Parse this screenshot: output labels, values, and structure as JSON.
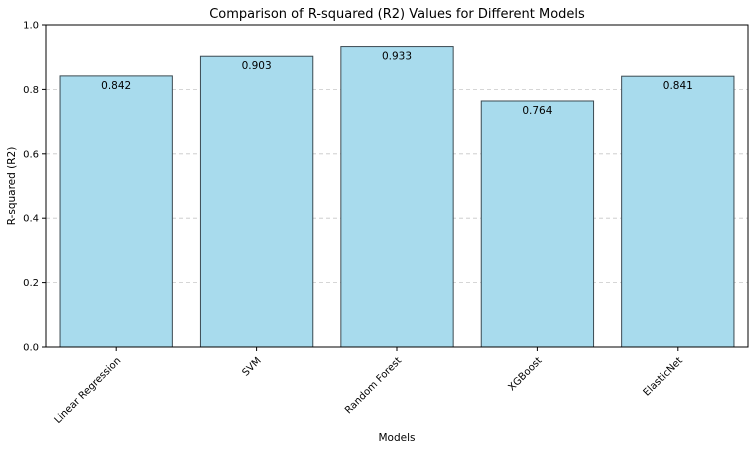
{
  "chart_data": {
    "type": "bar",
    "title": "Comparison of R-squared (R2) Values for Different Models",
    "xlabel": "Models",
    "ylabel": "R-squared (R2)",
    "categories": [
      "Linear Regression",
      "SVM",
      "Random Forest",
      "XGBoost",
      "ElasticNet"
    ],
    "values": [
      0.842,
      0.903,
      0.933,
      0.764,
      0.841
    ],
    "value_labels": [
      "0.842",
      "0.903",
      "0.933",
      "0.764",
      "0.841"
    ],
    "ylim": [
      0,
      1.0
    ],
    "yticks": [
      0.0,
      0.2,
      0.4,
      0.6,
      0.8,
      1.0
    ],
    "ytick_labels": [
      "0.0",
      "0.2",
      "0.4",
      "0.6",
      "0.8",
      "1.0"
    ],
    "grid": "y-dashed",
    "x_tick_rotation": "45deg",
    "colors": {
      "bar_fill": "#a8dbed",
      "bar_edge": "#3b4a52",
      "grid": "#c8c8c8",
      "axis": "#000000"
    }
  }
}
